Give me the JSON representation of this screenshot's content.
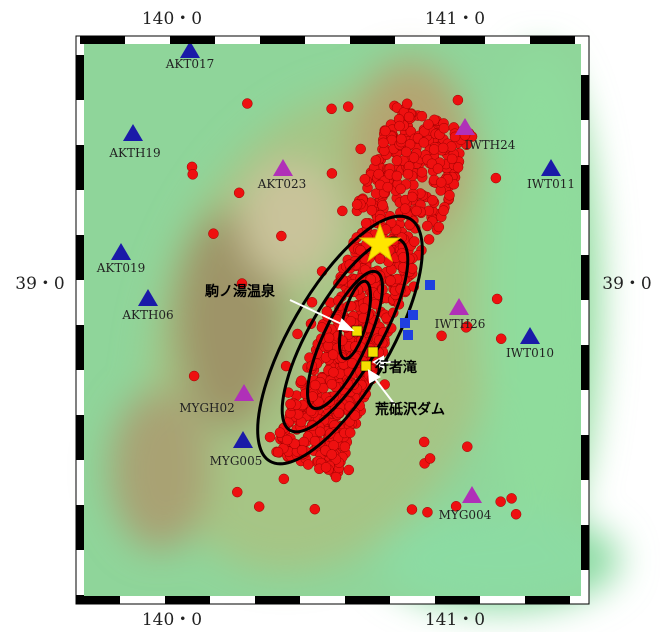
{
  "axes": {
    "top": [
      "140・0",
      "141・0"
    ],
    "bottom": [
      "140・0",
      "141・0"
    ],
    "left": [
      "39・0"
    ],
    "right": [
      "39・0"
    ]
  },
  "stations": [
    {
      "label": "AKT017",
      "color": "#1a1aa8"
    },
    {
      "label": "AKTH19",
      "color": "#1a1aa8"
    },
    {
      "label": "AKT023",
      "color": "#b030b8"
    },
    {
      "label": "IWTH24",
      "color": "#b030b8"
    },
    {
      "label": "IWT011",
      "color": "#1a1aa8"
    },
    {
      "label": "AKT019",
      "color": "#1a1aa8"
    },
    {
      "label": "AKTH06",
      "color": "#1a1aa8"
    },
    {
      "label": "IWTH26",
      "color": "#b030b8"
    },
    {
      "label": "IWT010",
      "color": "#1a1aa8"
    },
    {
      "label": "MYGH02",
      "color": "#b030b8"
    },
    {
      "label": "MYG005",
      "color": "#1a1aa8"
    },
    {
      "label": "MYG004",
      "color": "#b030b8"
    }
  ],
  "places": [
    "駒ノ湯温泉",
    "行者滝",
    "荒砥沢ダム"
  ]
}
